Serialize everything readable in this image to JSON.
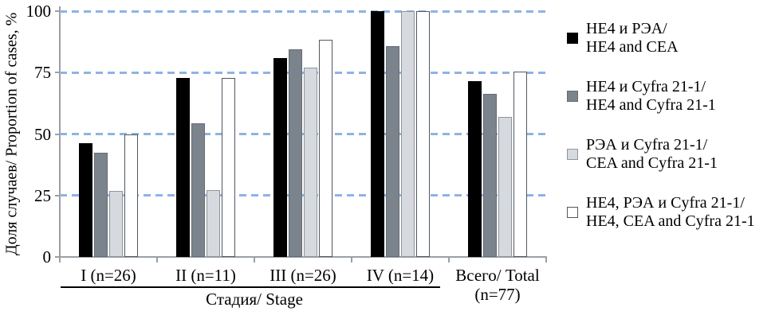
{
  "chart_data": {
    "type": "bar",
    "title": "",
    "ylabel": "Доля случаев/ Proportion of cases, %",
    "xlabel": "Стадия/ Stage",
    "ylim": [
      0,
      100
    ],
    "yticks": [
      0,
      25,
      50,
      75,
      100
    ],
    "grid": "horizontal dashed",
    "grid_color": "#8db4e2",
    "axis_color": "#9aa0a6",
    "legend_position": "right",
    "categories": [
      "I (n=26)",
      "II (n=11)",
      "III (n=26)",
      "IV (n=14)",
      "Всего/ Total\n(n=77)"
    ],
    "series": [
      {
        "name": "HE4 и РЭА/ HE4 and CEA",
        "legend_lines": [
          "HE4 и РЭА/",
          "HE4 and CEA"
        ],
        "color": "#000000",
        "border": "",
        "values": [
          46.2,
          72.7,
          80.8,
          100,
          71.4
        ]
      },
      {
        "name": "HE4 и Cyfra 21-1/ HE4 and Cyfra 21-1",
        "legend_lines": [
          "HE4 и Cyfra 21-1/",
          "HE4 and Cyfra 21-1"
        ],
        "color": "#7b848d",
        "border": "#646c74",
        "values": [
          42.3,
          54.5,
          84.6,
          85.7,
          66.2
        ]
      },
      {
        "name": "РЭА и Cyfra 21-1/ CEA and Cyfra 21-1",
        "legend_lines": [
          "РЭА и Cyfra 21-1/",
          "CEA and Cyfra 21-1"
        ],
        "color": "#d6dade",
        "border": "#8e959c",
        "values": [
          26.9,
          27.3,
          76.9,
          100,
          57.1
        ]
      },
      {
        "name": "HE4, РЭА и Cyfra 21-1/ HE4, CEA and Cyfra 21-1",
        "legend_lines": [
          "HE4, РЭА и Cyfra 21-1/",
          "HE4, CEA and Cyfra 21-1"
        ],
        "color": "#ffffff",
        "border": "#51585f",
        "values": [
          50.0,
          72.7,
          88.5,
          100,
          75.3
        ]
      }
    ]
  }
}
